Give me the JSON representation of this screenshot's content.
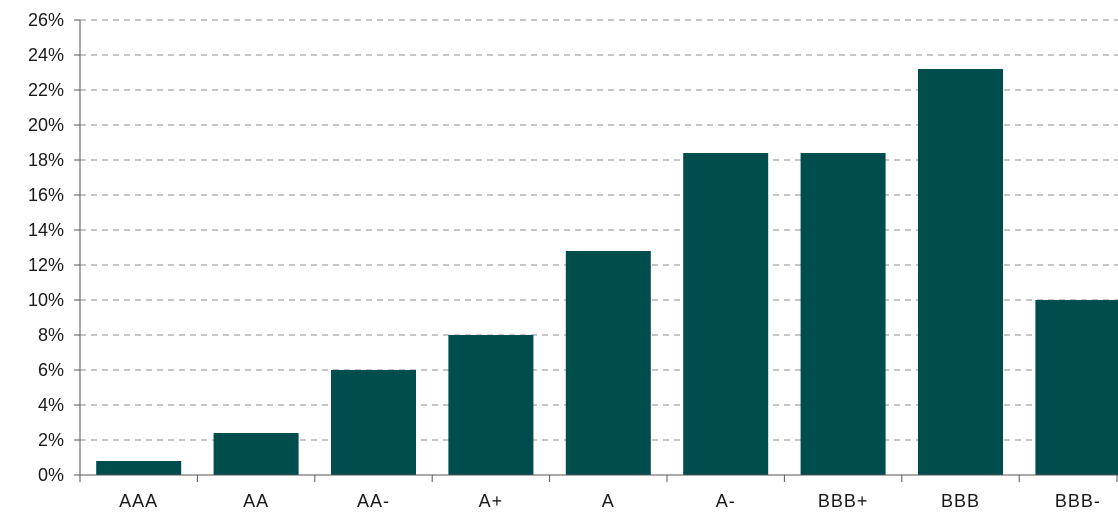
{
  "chart_data": {
    "type": "bar",
    "title": "",
    "xlabel": "",
    "ylabel": "",
    "categories": [
      "AAA",
      "AA",
      "AA-",
      "A+",
      "A",
      "A-",
      "BBB+",
      "BBB",
      "BBB-"
    ],
    "values": [
      0.8,
      2.4,
      6.0,
      8.0,
      12.8,
      18.4,
      18.4,
      23.2,
      10.0
    ],
    "ylim": [
      0,
      26
    ],
    "yticks": [
      "0%",
      "2%",
      "4%",
      "6%",
      "8%",
      "10%",
      "12%",
      "14%",
      "16%",
      "18%",
      "20%",
      "22%",
      "24%",
      "26%"
    ],
    "grid": true,
    "legend": "none",
    "colors": {
      "bar": "#004d4d",
      "grid": "#8c8c8c",
      "axis": "#555555"
    }
  }
}
